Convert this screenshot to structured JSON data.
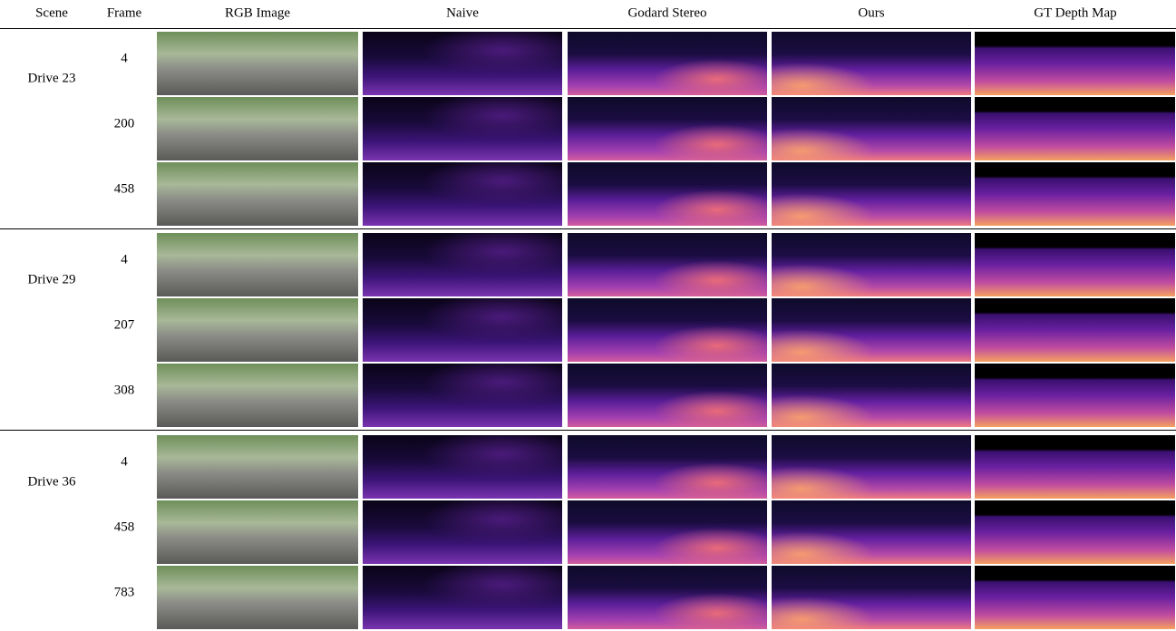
{
  "header": [
    "Scene",
    "Frame",
    "RGB Image",
    "Naive",
    "Godard Stereo",
    "Ours",
    "GT Depth Map"
  ],
  "groups": [
    {
      "scene": "Drive 23",
      "frames": [
        4,
        200,
        458
      ]
    },
    {
      "scene": "Drive 29",
      "frames": [
        4,
        207,
        308
      ]
    },
    {
      "scene": "Drive 36",
      "frames": [
        4,
        458,
        783
      ]
    }
  ]
}
